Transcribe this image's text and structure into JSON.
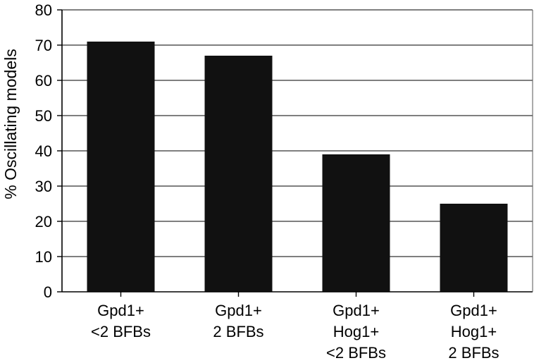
{
  "chart_data": {
    "type": "bar",
    "ylabel": "% Oscillating models",
    "xlabel": "",
    "ylim": [
      0,
      80
    ],
    "yticks": [
      0,
      10,
      20,
      30,
      40,
      50,
      60,
      70,
      80
    ],
    "grid": true,
    "categories": [
      [
        "Gpd1+",
        "<2 BFBs"
      ],
      [
        "Gpd1+",
        "2 BFBs"
      ],
      [
        "Gpd1+",
        "Hog1+",
        "<2 BFBs"
      ],
      [
        "Gpd1+",
        "Hog1+",
        "2 BFBs"
      ]
    ],
    "values": [
      71,
      67,
      39,
      25
    ],
    "bar_color": "#111111"
  }
}
